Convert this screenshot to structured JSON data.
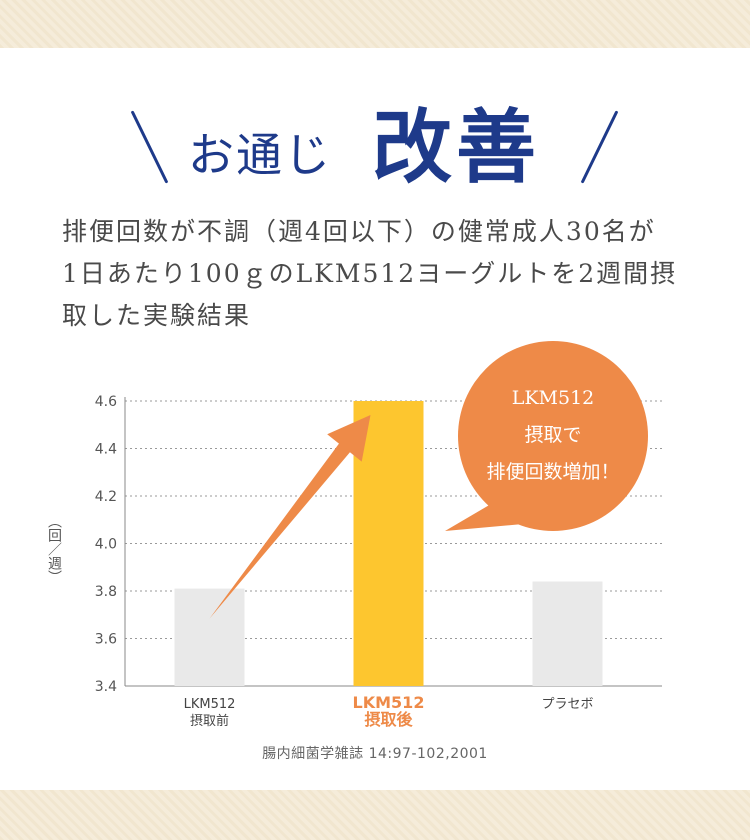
{
  "title": {
    "small": "お通じ",
    "big": "改善"
  },
  "description": [
    "排便回数が不調（週4回以下）の健常成人30名が",
    "1日あたり100ｇのLKM512ヨーグルトを2週間摂",
    "取した実験結果"
  ],
  "callout": {
    "lines": [
      "LKM512",
      "摂取で",
      "排便回数増加！"
    ],
    "color": "#ee8a48"
  },
  "source": "腸内細菌学雑誌 14:97-102,2001",
  "chart_data": {
    "type": "bar",
    "ylabel": "（回／週）",
    "ylim": [
      3.4,
      4.6
    ],
    "yticks": [
      3.4,
      3.6,
      3.8,
      4.0,
      4.2,
      4.4,
      4.6
    ],
    "grid": true,
    "categories": [
      {
        "lines": [
          "LKM512",
          "摂取前"
        ],
        "highlight": false
      },
      {
        "lines": [
          "LKM512",
          "摂取後"
        ],
        "highlight": true
      },
      {
        "lines": [
          "プラセボ"
        ],
        "highlight": false
      }
    ],
    "values": [
      3.81,
      4.6,
      3.84
    ],
    "colors": {
      "bar": "#e9e9e9",
      "highlight_bar": "#fdc62f",
      "highlight_label": "#ee8a48",
      "arrow": "#ee8a48"
    }
  }
}
